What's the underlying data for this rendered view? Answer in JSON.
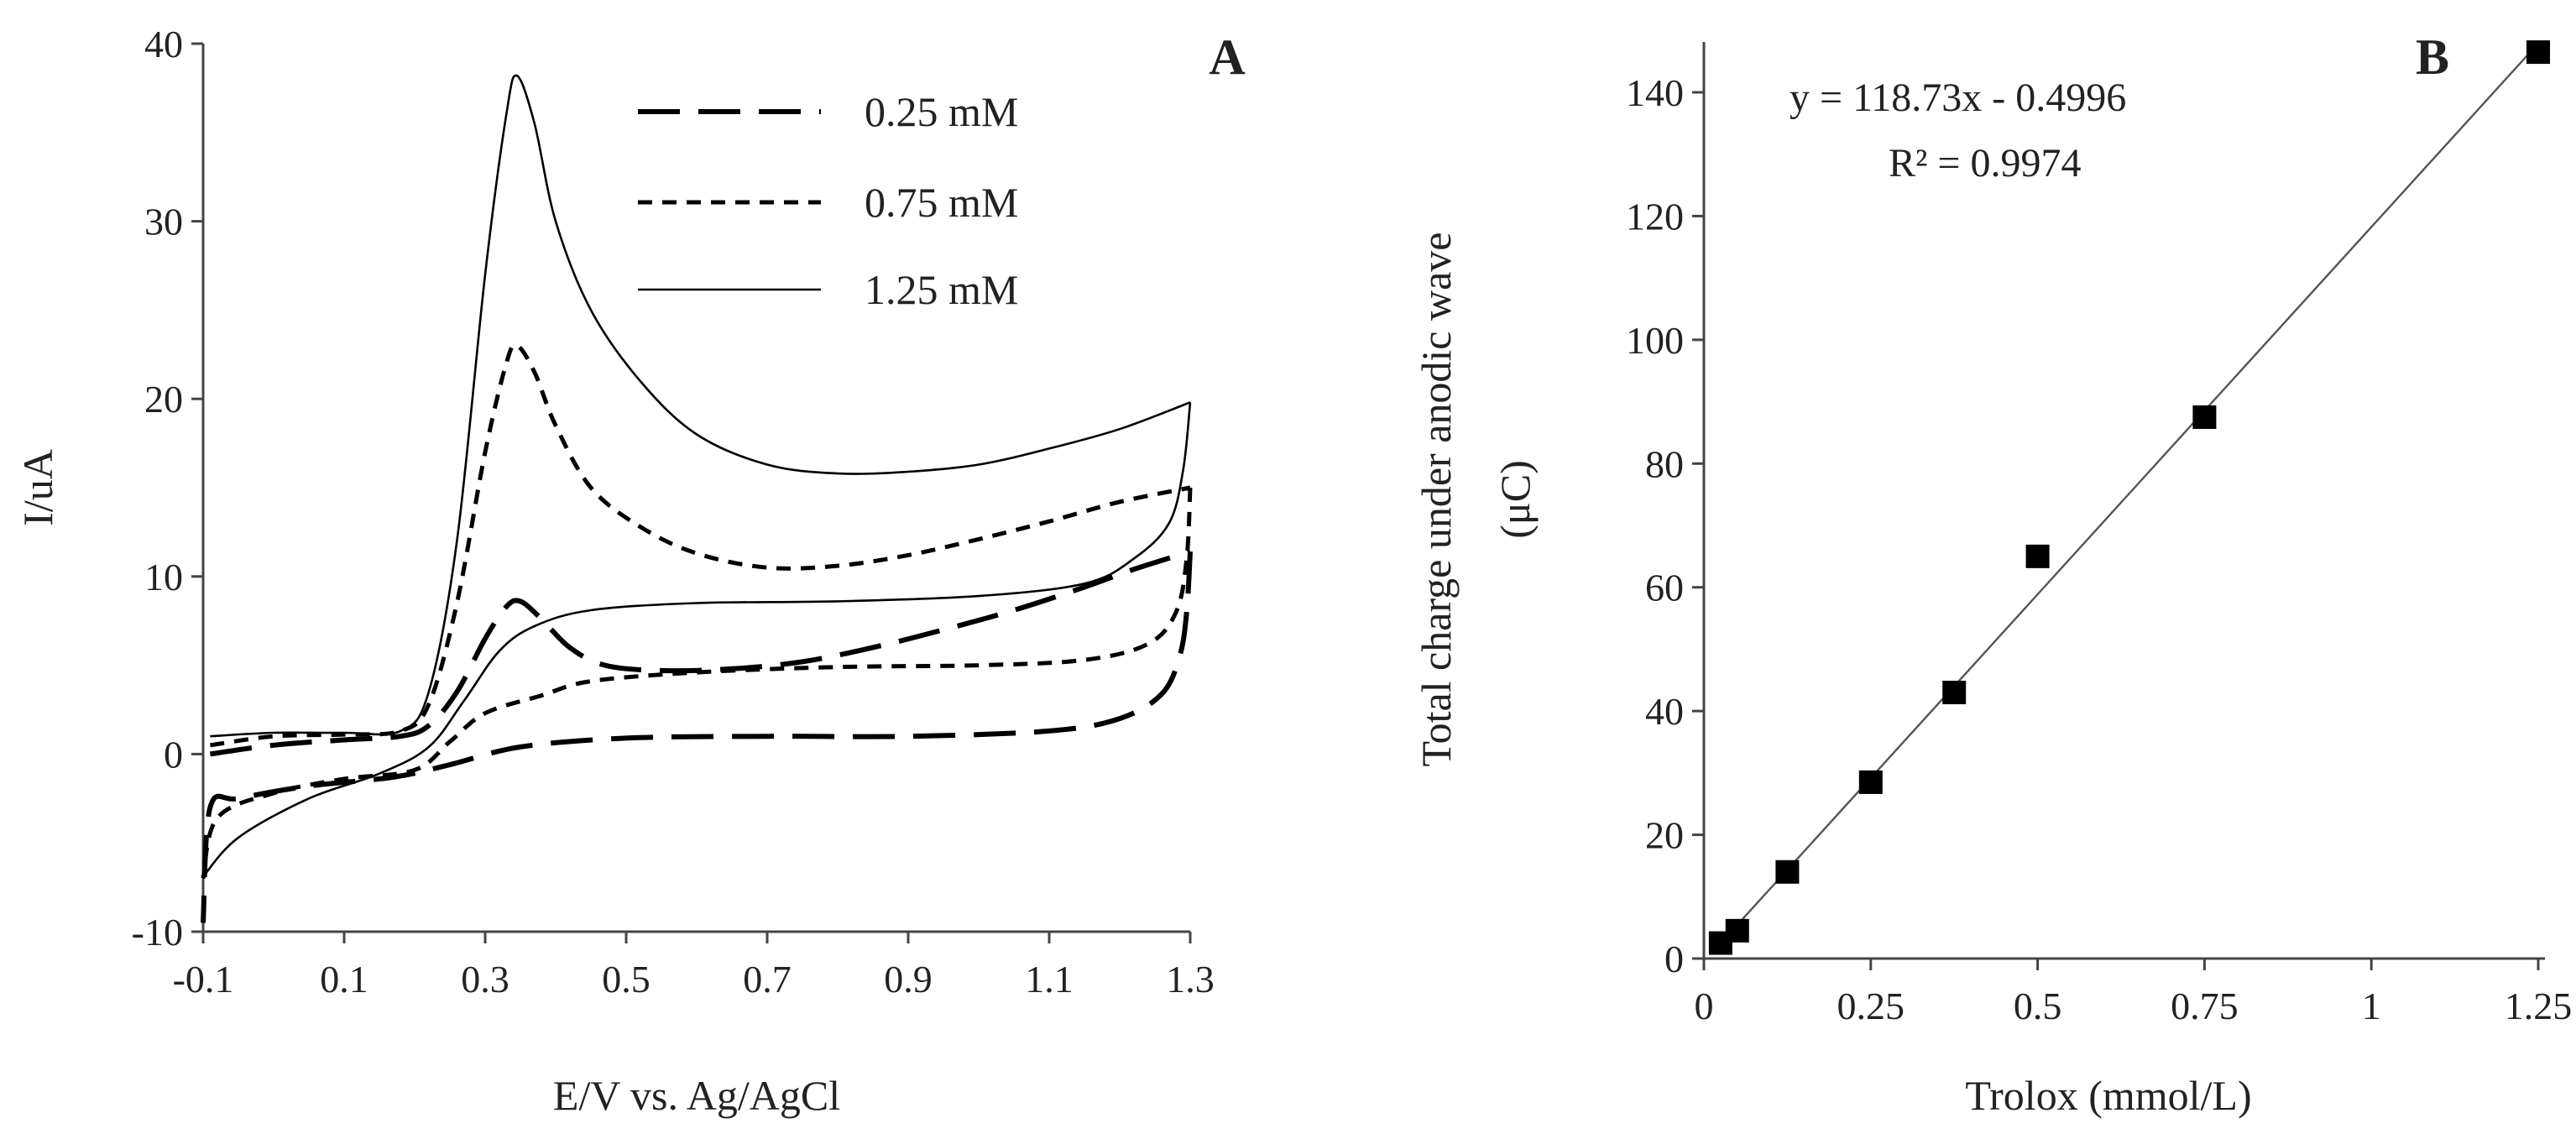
{
  "chart_data": [
    {
      "type": "line",
      "panel": "A",
      "xlabel": "E/V vs. Ag/AgCl",
      "ylabel": "I/uA",
      "xlim": [
        -0.1,
        1.3
      ],
      "ylim": [
        -10,
        40
      ],
      "xticks": [
        "-0.1",
        "0.1",
        "0.3",
        "0.5",
        "0.7",
        "0.9",
        "1.1",
        "1.3"
      ],
      "yticks": [
        "-10",
        "0",
        "10",
        "20",
        "30",
        "40"
      ],
      "grid": false,
      "legend_position": "top-right",
      "series": [
        {
          "name": "0.25 mM",
          "style": "long-dash",
          "anodic": [
            [
              -0.09,
              0.0
            ],
            [
              0.0,
              0.5
            ],
            [
              0.1,
              0.8
            ],
            [
              0.18,
              1.0
            ],
            [
              0.22,
              1.6
            ],
            [
              0.26,
              3.5
            ],
            [
              0.3,
              6.5
            ],
            [
              0.33,
              8.3
            ],
            [
              0.35,
              8.6
            ],
            [
              0.38,
              7.6
            ],
            [
              0.42,
              6.0
            ],
            [
              0.47,
              5.0
            ],
            [
              0.55,
              4.7
            ],
            [
              0.65,
              4.8
            ],
            [
              0.75,
              5.2
            ],
            [
              0.85,
              6.0
            ],
            [
              0.95,
              7.0
            ],
            [
              1.05,
              8.1
            ],
            [
              1.15,
              9.4
            ],
            [
              1.22,
              10.4
            ],
            [
              1.3,
              11.4
            ]
          ],
          "cathodic": [
            [
              1.3,
              11.4
            ],
            [
              1.295,
              8.0
            ],
            [
              1.285,
              5.5
            ],
            [
              1.26,
              3.4
            ],
            [
              1.2,
              2.0
            ],
            [
              1.1,
              1.3
            ],
            [
              0.9,
              1.0
            ],
            [
              0.7,
              1.0
            ],
            [
              0.5,
              0.9
            ],
            [
              0.35,
              0.4
            ],
            [
              0.25,
              -0.6
            ],
            [
              0.17,
              -1.3
            ],
            [
              0.05,
              -1.8
            ],
            [
              -0.05,
              -2.5
            ],
            [
              -0.09,
              -3.0
            ],
            [
              -0.1,
              -9.5
            ]
          ]
        },
        {
          "name": "0.75 mM",
          "style": "short-dash",
          "anodic": [
            [
              -0.09,
              0.5
            ],
            [
              0.0,
              1.0
            ],
            [
              0.1,
              1.1
            ],
            [
              0.18,
              1.3
            ],
            [
              0.22,
              2.8
            ],
            [
              0.26,
              8.5
            ],
            [
              0.3,
              17.0
            ],
            [
              0.33,
              22.0
            ],
            [
              0.345,
              23.0
            ],
            [
              0.37,
              21.5
            ],
            [
              0.4,
              18.5
            ],
            [
              0.45,
              15.0
            ],
            [
              0.52,
              12.8
            ],
            [
              0.6,
              11.3
            ],
            [
              0.7,
              10.5
            ],
            [
              0.8,
              10.6
            ],
            [
              0.9,
              11.2
            ],
            [
              1.0,
              12.1
            ],
            [
              1.1,
              13.1
            ],
            [
              1.2,
              14.2
            ],
            [
              1.3,
              15.0
            ]
          ],
          "cathodic": [
            [
              1.3,
              15.0
            ],
            [
              1.295,
              11.0
            ],
            [
              1.28,
              8.0
            ],
            [
              1.24,
              6.2
            ],
            [
              1.15,
              5.3
            ],
            [
              1.0,
              5.0
            ],
            [
              0.8,
              4.9
            ],
            [
              0.6,
              4.6
            ],
            [
              0.45,
              4.1
            ],
            [
              0.38,
              3.3
            ],
            [
              0.3,
              2.3
            ],
            [
              0.25,
              0.7
            ],
            [
              0.2,
              -0.9
            ],
            [
              0.1,
              -1.4
            ],
            [
              0.0,
              -2.2
            ],
            [
              -0.08,
              -3.6
            ],
            [
              -0.1,
              -7.0
            ]
          ]
        },
        {
          "name": "1.25 mM",
          "style": "solid",
          "anodic": [
            [
              -0.09,
              1.0
            ],
            [
              0.0,
              1.2
            ],
            [
              0.1,
              1.2
            ],
            [
              0.18,
              1.3
            ],
            [
              0.22,
              3.5
            ],
            [
              0.26,
              12.0
            ],
            [
              0.3,
              27.0
            ],
            [
              0.33,
              36.0
            ],
            [
              0.345,
              38.2
            ],
            [
              0.37,
              35.5
            ],
            [
              0.4,
              30.0
            ],
            [
              0.45,
              25.0
            ],
            [
              0.52,
              21.0
            ],
            [
              0.6,
              18.0
            ],
            [
              0.7,
              16.3
            ],
            [
              0.8,
              15.8
            ],
            [
              0.9,
              15.9
            ],
            [
              1.0,
              16.3
            ],
            [
              1.1,
              17.2
            ],
            [
              1.2,
              18.3
            ],
            [
              1.3,
              19.8
            ]
          ],
          "cathodic": [
            [
              1.3,
              19.8
            ],
            [
              1.29,
              16.0
            ],
            [
              1.27,
              13.0
            ],
            [
              1.22,
              11.0
            ],
            [
              1.15,
              9.6
            ],
            [
              1.0,
              8.9
            ],
            [
              0.8,
              8.6
            ],
            [
              0.6,
              8.5
            ],
            [
              0.45,
              8.1
            ],
            [
              0.37,
              7.2
            ],
            [
              0.32,
              5.8
            ],
            [
              0.27,
              3.0
            ],
            [
              0.22,
              0.4
            ],
            [
              0.15,
              -1.1
            ],
            [
              0.05,
              -2.5
            ],
            [
              -0.05,
              -4.7
            ],
            [
              -0.1,
              -6.9
            ]
          ]
        }
      ]
    },
    {
      "type": "scatter",
      "panel": "B",
      "xlabel": "Trolox (mmol/L)",
      "ylabel": "Total charge under anodic wave (μC)",
      "xlim": [
        0,
        1.25
      ],
      "ylim": [
        0,
        150
      ],
      "xticks": [
        "0",
        "0.25",
        "0.5",
        "0.75",
        "1",
        "1.25"
      ],
      "yticks": [
        "0",
        "20",
        "40",
        "60",
        "80",
        "100",
        "120",
        "140"
      ],
      "grid": false,
      "x": [
        0.025,
        0.05,
        0.125,
        0.25,
        0.375,
        0.5,
        0.75,
        1.25
      ],
      "y": [
        2.5,
        4.5,
        14,
        28.5,
        43,
        65,
        87.5,
        146.5
      ],
      "trendline": {
        "slope": 118.73,
        "intercept": -0.4996
      },
      "annotations": [
        "y = 118.73x - 0.4996",
        "R² = 0.9974"
      ]
    }
  ]
}
